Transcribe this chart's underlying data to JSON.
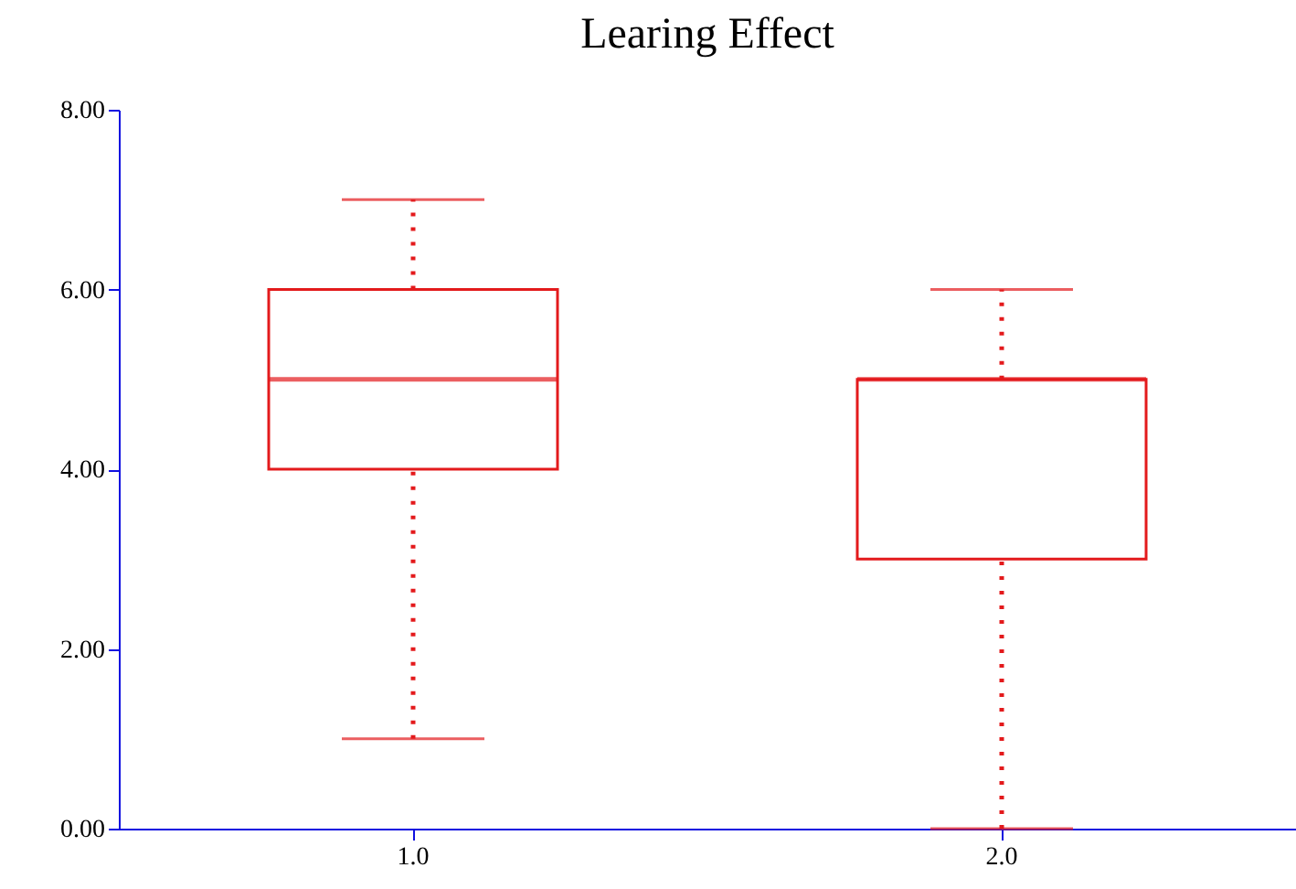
{
  "chart_data": {
    "type": "box",
    "title": "Learing Effect",
    "categories": [
      "1.0",
      "2.0"
    ],
    "series": [
      {
        "color": "#e31a1c",
        "boxes": [
          {
            "low": 1,
            "q1": 4,
            "median": 5,
            "q3": 6,
            "high": 7
          },
          {
            "low": 0,
            "q1": 3,
            "median": 5,
            "q3": 5,
            "high": 6
          }
        ]
      }
    ],
    "ylim": [
      0,
      8
    ],
    "yticks": [
      {
        "value": 0,
        "label": "0.00"
      },
      {
        "value": 2,
        "label": "2.00"
      },
      {
        "value": 4,
        "label": "4.00"
      },
      {
        "value": 6,
        "label": "6.00"
      },
      {
        "value": 8,
        "label": "8.00"
      }
    ],
    "grid": false,
    "line_style": "dotted"
  }
}
